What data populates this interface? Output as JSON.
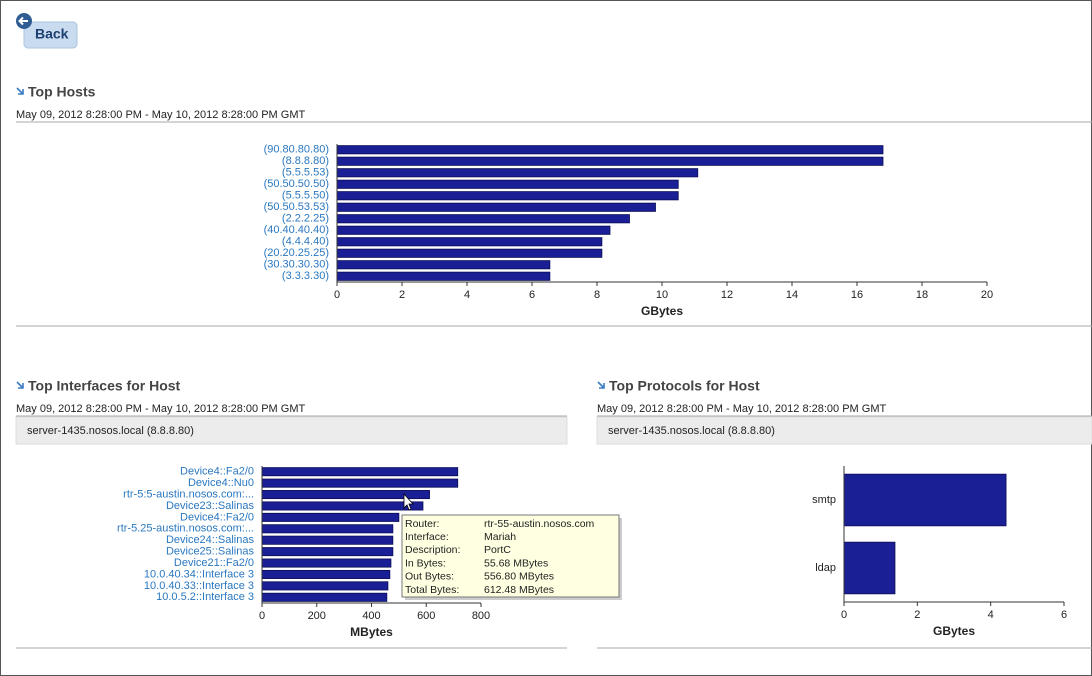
{
  "back_button": "Back",
  "chart_data": [
    {
      "type": "bar",
      "orientation": "horizontal",
      "title": "Top Hosts",
      "subtitle": "May 09, 2012 8:28:00 PM - May 10, 2012 8:28:00 PM GMT",
      "categories": [
        "(90.80.80.80)",
        "(8.8.8.80)",
        "(5.5.5.53)",
        "(50.50.50.50)",
        "(5.5.5.50)",
        "(50.50.53.53)",
        "(2.2.2.25)",
        "(40.40.40.40)",
        "(4.4.4.40)",
        "(20.20.25.25)",
        "(30.30.30.30)",
        "(3.3.3.30)"
      ],
      "values": [
        16.8,
        16.8,
        11.1,
        10.5,
        10.5,
        9.8,
        9.0,
        8.4,
        8.15,
        8.15,
        6.55,
        6.55
      ],
      "color": "#1b1f96",
      "xlim": [
        0,
        20
      ],
      "xticks": [
        0,
        2,
        4,
        6,
        8,
        10,
        12,
        14,
        16,
        18,
        20
      ],
      "xlabel": "GBytes"
    },
    {
      "type": "bar",
      "orientation": "horizontal",
      "title": "Top Interfaces for Host",
      "subtitle": "May 09, 2012 8:28:00 PM - May 10, 2012 8:28:00 PM GMT",
      "host_label": "server-1435.nosos.local (8.8.8.80)",
      "categories": [
        "Device4::Fa2/0",
        "Device4::Nu0",
        "rtr-5:5-austin.nosos.com:...",
        "Device23::Salinas",
        "Device4::Fa2/0",
        "rtr-5.25-austin.nosos.com:...",
        "Device24::Salinas",
        "Device25::Salinas",
        "Device21::Fa2/0",
        "10.0.40.34::Interface 3",
        "10.0.40.33::Interface 3",
        "10.0.5.2::Interface 3"
      ],
      "values": [
        715,
        715,
        612,
        588,
        500,
        478,
        478,
        478,
        471,
        467,
        460,
        456
      ],
      "color": "#1b1f96",
      "xlim": [
        0,
        800
      ],
      "xticks": [
        0,
        200,
        400,
        600,
        800
      ],
      "xlabel": "MBytes"
    },
    {
      "type": "bar",
      "orientation": "horizontal",
      "title": "Top Protocols for Host",
      "subtitle": "May 09, 2012 8:28:00 PM - May 10, 2012 8:28:00 PM GMT",
      "host_label": "server-1435.nosos.local (8.8.8.80)",
      "categories": [
        "smtp",
        "ldap"
      ],
      "values": [
        4.42,
        1.39
      ],
      "color": "#1b1f96",
      "xlim": [
        0,
        6
      ],
      "xticks": [
        0,
        2,
        4,
        6
      ],
      "xlabel": "GBytes"
    }
  ],
  "tooltip": {
    "rows": [
      [
        "Router:",
        "rtr-55-austin.nosos.com"
      ],
      [
        "Interface:",
        "Mariah"
      ],
      [
        "Description:",
        "PortC"
      ],
      [
        "In Bytes:",
        "55.68 MBytes"
      ],
      [
        "Out Bytes:",
        "556.80 MBytes"
      ],
      [
        "Total Bytes:",
        "612.48 MBytes"
      ]
    ]
  }
}
